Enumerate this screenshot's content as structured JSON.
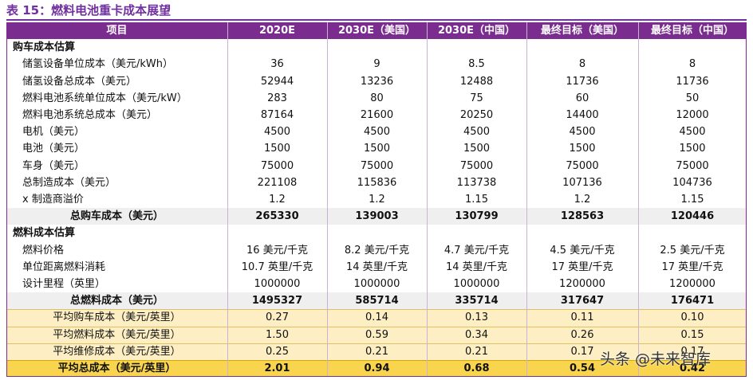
{
  "title": "表 15：燃料电池重卡成本展望",
  "table": {
    "header": [
      "项目",
      "2020E",
      "2030E（美国）",
      "2030E（中国）",
      "最终目标（美国）",
      "最终目标（中国）"
    ],
    "sections": [
      {
        "title": "购车成本估算",
        "rows": [
          [
            "储氢设备单位成本（美元/kWh）",
            "36",
            "9",
            "8.5",
            "8",
            "8"
          ],
          [
            "储氢设备总成本（美元）",
            "52944",
            "13236",
            "12488",
            "11736",
            "11736"
          ],
          [
            "燃料电池系统单位成本（美元/kW）",
            "283",
            "80",
            "75",
            "60",
            "50"
          ],
          [
            "燃料电池系统总成本（美元）",
            "87164",
            "21600",
            "20250",
            "14400",
            "12000"
          ],
          [
            "电机（美元）",
            "4500",
            "4500",
            "4500",
            "4500",
            "4500"
          ],
          [
            "电池（美元）",
            "1500",
            "1500",
            "1500",
            "1500",
            "1500"
          ],
          [
            "车身（美元）",
            "75000",
            "75000",
            "75000",
            "75000",
            "75000"
          ],
          [
            "总制造成本（美元）",
            "221108",
            "115836",
            "113738",
            "107136",
            "104736"
          ],
          [
            "x 制造商溢价",
            "1.2",
            "1.2",
            "1.15",
            "1.2",
            "1.15"
          ]
        ],
        "total": [
          "总购车成本（美元）",
          "265330",
          "139003",
          "130799",
          "128563",
          "120446"
        ]
      },
      {
        "title": "燃料成本估算",
        "rows": [
          [
            "燃料价格",
            "16 美元/千克",
            "8.2 美元/千克",
            "4.7 美元/千克",
            "4.5 美元/千克",
            "2.5 美元/千克"
          ],
          [
            "单位距离燃料消耗",
            "10.7 英里/千克",
            "14 英里/千克",
            "14 英里/千克",
            "17 英里/千克",
            "17 英里/千克"
          ],
          [
            "设计里程（英里）",
            "1000000",
            "1000000",
            "1000000",
            "1200000",
            "1200000"
          ]
        ],
        "total": [
          "总燃料成本（美元）",
          "1495327",
          "585714",
          "335714",
          "317647",
          "176471"
        ]
      }
    ],
    "summary": {
      "rows": [
        [
          "平均购车成本（美元/英里）",
          "0.27",
          "0.14",
          "0.13",
          "0.11",
          "0.10"
        ],
        [
          "平均燃料成本（美元/英里）",
          "1.50",
          "0.59",
          "0.34",
          "0.26",
          "0.15"
        ],
        [
          "平均维修成本（美元/英里）",
          "0.25",
          "0.21",
          "0.21",
          "0.17",
          "0.17"
        ]
      ],
      "total": [
        "平均总成本（美元/英里）",
        "2.01",
        "0.94",
        "0.68",
        "0.54",
        "0.42"
      ]
    }
  },
  "watermark": "头条 @未来智库"
}
